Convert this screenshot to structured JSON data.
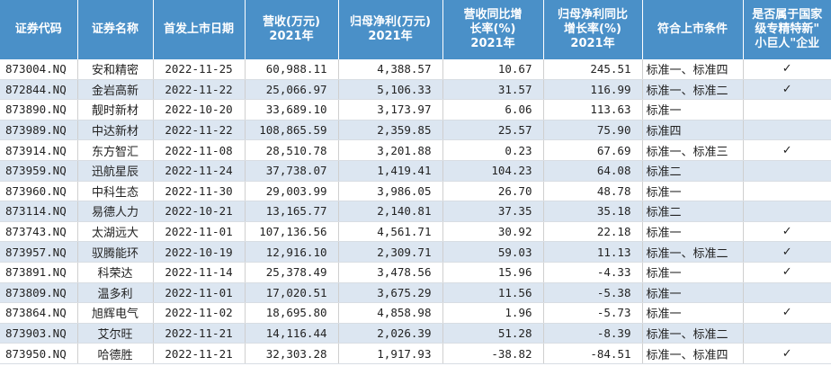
{
  "headers": [
    {
      "lines": [
        "证券代码"
      ]
    },
    {
      "lines": [
        "证券名称"
      ]
    },
    {
      "lines": [
        "首发上市日期"
      ]
    },
    {
      "lines": [
        "营收(万元)",
        "2021年"
      ]
    },
    {
      "lines": [
        "归母净利(万元)",
        "2021年"
      ]
    },
    {
      "lines": [
        "营收同比增",
        "长率(%)",
        "2021年"
      ]
    },
    {
      "lines": [
        "归母净利同比",
        "增长率(%)",
        "2021年"
      ]
    },
    {
      "lines": [
        "符合上市条件"
      ]
    },
    {
      "lines": [
        "是否属于国家",
        "级专精特新\"",
        "小巨人\"企业"
      ]
    }
  ],
  "rows": [
    {
      "code": "873004.NQ",
      "name": "安和精密",
      "date": "2022-11-25",
      "revenue": "60,988.11",
      "profit": "4,388.57",
      "rev_growth": "10.67",
      "profit_growth": "245.51",
      "standard": "标准一、标准四",
      "giant": "✓"
    },
    {
      "code": "872844.NQ",
      "name": "金岩高新",
      "date": "2022-11-22",
      "revenue": "25,066.97",
      "profit": "5,106.33",
      "rev_growth": "31.57",
      "profit_growth": "116.99",
      "standard": "标准一、标准二",
      "giant": "✓"
    },
    {
      "code": "873890.NQ",
      "name": "靓时新材",
      "date": "2022-10-20",
      "revenue": "33,689.10",
      "profit": "3,173.97",
      "rev_growth": "6.06",
      "profit_growth": "113.63",
      "standard": "标准一",
      "giant": ""
    },
    {
      "code": "873989.NQ",
      "name": "中达新材",
      "date": "2022-11-22",
      "revenue": "108,865.59",
      "profit": "2,359.85",
      "rev_growth": "25.57",
      "profit_growth": "75.90",
      "standard": "标准四",
      "giant": ""
    },
    {
      "code": "873914.NQ",
      "name": "东方智汇",
      "date": "2022-11-08",
      "revenue": "28,510.78",
      "profit": "3,201.88",
      "rev_growth": "0.23",
      "profit_growth": "67.69",
      "standard": "标准一、标准三",
      "giant": "✓"
    },
    {
      "code": "873959.NQ",
      "name": "迅航星辰",
      "date": "2022-11-24",
      "revenue": "37,738.07",
      "profit": "1,419.41",
      "rev_growth": "104.23",
      "profit_growth": "64.08",
      "standard": "标准二",
      "giant": ""
    },
    {
      "code": "873960.NQ",
      "name": "中科生态",
      "date": "2022-11-30",
      "revenue": "29,003.99",
      "profit": "3,986.05",
      "rev_growth": "26.70",
      "profit_growth": "48.78",
      "standard": "标准一",
      "giant": ""
    },
    {
      "code": "873114.NQ",
      "name": "易德人力",
      "date": "2022-10-21",
      "revenue": "13,165.77",
      "profit": "2,140.81",
      "rev_growth": "37.35",
      "profit_growth": "35.18",
      "standard": "标准二",
      "giant": ""
    },
    {
      "code": "873743.NQ",
      "name": "太湖远大",
      "date": "2022-11-01",
      "revenue": "107,136.56",
      "profit": "4,561.71",
      "rev_growth": "30.92",
      "profit_growth": "22.18",
      "standard": "标准一",
      "giant": "✓"
    },
    {
      "code": "873957.NQ",
      "name": "驭腾能环",
      "date": "2022-10-19",
      "revenue": "12,916.10",
      "profit": "2,309.71",
      "rev_growth": "59.03",
      "profit_growth": "11.13",
      "standard": "标准一、标准二",
      "giant": "✓"
    },
    {
      "code": "873891.NQ",
      "name": "科荣达",
      "date": "2022-11-14",
      "revenue": "25,378.49",
      "profit": "3,478.56",
      "rev_growth": "15.96",
      "profit_growth": "-4.33",
      "standard": "标准一",
      "giant": "✓"
    },
    {
      "code": "873809.NQ",
      "name": "温多利",
      "date": "2022-11-01",
      "revenue": "17,020.51",
      "profit": "3,675.29",
      "rev_growth": "11.56",
      "profit_growth": "-5.38",
      "standard": "标准一",
      "giant": ""
    },
    {
      "code": "873864.NQ",
      "name": "旭辉电气",
      "date": "2022-11-02",
      "revenue": "18,695.80",
      "profit": "4,858.98",
      "rev_growth": "1.96",
      "profit_growth": "-5.73",
      "standard": "标准一",
      "giant": "✓"
    },
    {
      "code": "873903.NQ",
      "name": "艾尔旺",
      "date": "2022-11-21",
      "revenue": "14,116.44",
      "profit": "2,026.39",
      "rev_growth": "51.28",
      "profit_growth": "-8.39",
      "standard": "标准一、标准二",
      "giant": ""
    },
    {
      "code": "873950.NQ",
      "name": "哈德胜",
      "date": "2022-11-21",
      "revenue": "32,303.28",
      "profit": "1,917.93",
      "rev_growth": "-38.82",
      "profit_growth": "-84.51",
      "standard": "标准一、标准四",
      "giant": "✓"
    }
  ],
  "colors": {
    "header_bg": "#4a90c8",
    "stripe_bg": "#dce6f1",
    "header_text": "#ffffff"
  }
}
